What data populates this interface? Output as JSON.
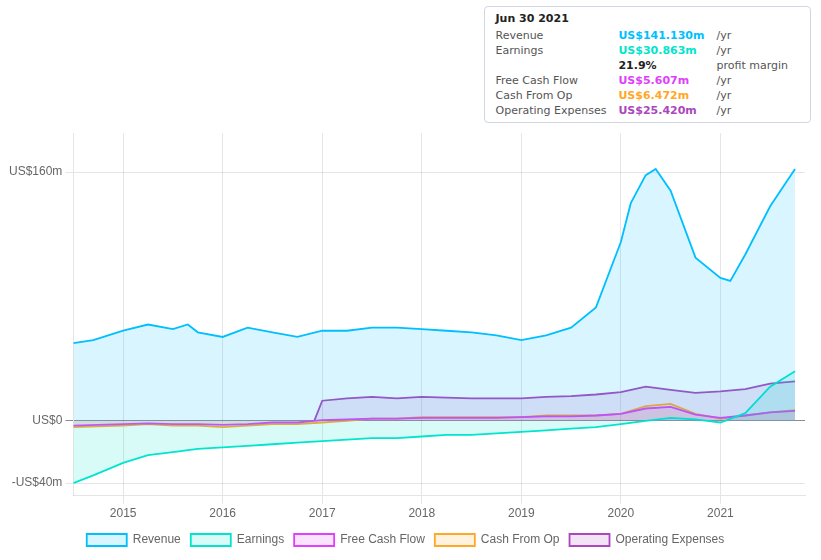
{
  "chart_data": {
    "type": "line",
    "series": [
      {
        "name": "Revenue",
        "color": "#00bfff",
        "x": [
          2014.5,
          2014.7,
          2015.0,
          2015.25,
          2015.5,
          2015.65,
          2015.75,
          2016.0,
          2016.25,
          2016.5,
          2016.75,
          2017.0,
          2017.25,
          2017.5,
          2017.75,
          2018.0,
          2018.25,
          2018.5,
          2018.75,
          2019.0,
          2019.25,
          2019.5,
          2019.75,
          2020.0,
          2020.1,
          2020.25,
          2020.35,
          2020.5,
          2020.75,
          2021.0,
          2021.1,
          2021.25,
          2021.5,
          2021.75
        ],
        "values": [
          50,
          52,
          58,
          62,
          59,
          62,
          57,
          54,
          60,
          57,
          54,
          58,
          58,
          60,
          60,
          59,
          58,
          57,
          55,
          52,
          55,
          60,
          73,
          115,
          140,
          158,
          162,
          148,
          105,
          92,
          90,
          107,
          138,
          162
        ]
      },
      {
        "name": "Earnings",
        "color": "#00e5cc",
        "x": [
          2014.5,
          2014.7,
          2015.0,
          2015.25,
          2015.5,
          2015.75,
          2016.0,
          2016.25,
          2016.5,
          2016.75,
          2017.0,
          2017.25,
          2017.5,
          2017.75,
          2018.0,
          2018.25,
          2018.5,
          2018.75,
          2019.0,
          2019.25,
          2019.5,
          2019.75,
          2020.0,
          2020.25,
          2020.5,
          2020.75,
          2021.0,
          2021.25,
          2021.5,
          2021.75
        ],
        "values": [
          -40,
          -35,
          -27,
          -22,
          -20,
          -18,
          -17,
          -16,
          -15,
          -14,
          -13,
          -12,
          -11,
          -11,
          -10,
          -9,
          -9,
          -8,
          -7,
          -6,
          -5,
          -4,
          -2,
          0,
          2,
          1,
          -1,
          5,
          22,
          32
        ]
      },
      {
        "name": "Free Cash Flow",
        "color": "#e040fb",
        "x": [
          2014.5,
          2014.75,
          2015.0,
          2015.25,
          2015.5,
          2015.75,
          2016.0,
          2016.25,
          2016.5,
          2016.75,
          2017.0,
          2017.25,
          2017.5,
          2017.75,
          2018.0,
          2018.25,
          2018.5,
          2018.75,
          2019.0,
          2019.25,
          2019.5,
          2019.75,
          2020.0,
          2020.25,
          2020.5,
          2020.75,
          2021.0,
          2021.25,
          2021.5,
          2021.75
        ],
        "values": [
          -3,
          -2.5,
          -2,
          -1.5,
          -2,
          -2,
          -2.5,
          -2,
          -1,
          -1,
          0.5,
          1,
          1.5,
          1.5,
          2,
          2,
          2,
          2,
          2.5,
          3,
          3,
          3.5,
          4.5,
          8,
          9,
          4,
          2,
          3.5,
          5.5,
          6.5
        ]
      },
      {
        "name": "Cash From Op",
        "color": "#ffa726",
        "x": [
          2014.5,
          2014.75,
          2015.0,
          2015.25,
          2015.5,
          2015.75,
          2016.0,
          2016.25,
          2016.5,
          2016.75,
          2017.0,
          2017.25,
          2017.5,
          2017.75,
          2018.0,
          2018.25,
          2018.5,
          2018.75,
          2019.0,
          2019.25,
          2019.5,
          2019.75,
          2020.0,
          2020.25,
          2020.5,
          2020.75,
          2021.0,
          2021.25,
          2021.5,
          2021.75
        ],
        "values": [
          -4,
          -3.5,
          -3,
          -2,
          -3,
          -3,
          -4,
          -3,
          -2,
          -2,
          -1,
          0,
          1.5,
          1.5,
          2.5,
          2.5,
          2.5,
          2.5,
          2.5,
          3.5,
          3.5,
          3.5,
          4.5,
          9.5,
          11,
          4.5,
          1.5,
          3.5,
          5.5,
          7
        ]
      },
      {
        "name": "Operating Expenses",
        "color": "#ab47bc",
        "x": [
          2016.92,
          2017.0,
          2017.25,
          2017.5,
          2017.75,
          2018.0,
          2018.25,
          2018.5,
          2018.75,
          2019.0,
          2019.25,
          2019.5,
          2019.75,
          2020.0,
          2020.25,
          2020.5,
          2020.75,
          2021.0,
          2021.25,
          2021.5,
          2021.75
        ],
        "values": [
          0,
          13,
          14.5,
          15.5,
          14.5,
          15.5,
          15,
          14.5,
          14.5,
          14.5,
          15.5,
          16,
          17,
          18.5,
          22,
          20,
          18,
          19,
          20.5,
          24,
          25.5
        ]
      }
    ],
    "xlim": [
      2014.5,
      2021.85
    ],
    "xticks": [
      2015,
      2016,
      2017,
      2018,
      2019,
      2020,
      2021
    ],
    "ylim": [
      -48,
      185
    ],
    "yticks": [
      {
        "value": 160,
        "label": "US$160m"
      },
      {
        "value": 0,
        "label": "US$0"
      },
      {
        "value": -40,
        "label": "-US$40m"
      }
    ],
    "grid": true,
    "legend": "bottom",
    "annotations": [
      {
        "text": "Jun 30 2021"
      },
      {
        "label": "Revenue",
        "text": "US$141.130m",
        "color": "#00bfff",
        "suffix": "/yr"
      },
      {
        "label": "Earnings",
        "text": "US$30.863m",
        "color": "#00e5cc",
        "suffix": "/yr"
      },
      {
        "text": "21.9%",
        "suffix": "profit margin"
      },
      {
        "label": "Free Cash Flow",
        "text": "US$5.607m",
        "color": "#e040fb",
        "suffix": "/yr"
      },
      {
        "label": "Cash From Op",
        "text": "US$6.472m",
        "color": "#ffa726",
        "suffix": "/yr"
      },
      {
        "label": "Operating Expenses",
        "text": "US$25.420m",
        "color": "#ab47bc",
        "suffix": "/yr"
      }
    ]
  }
}
